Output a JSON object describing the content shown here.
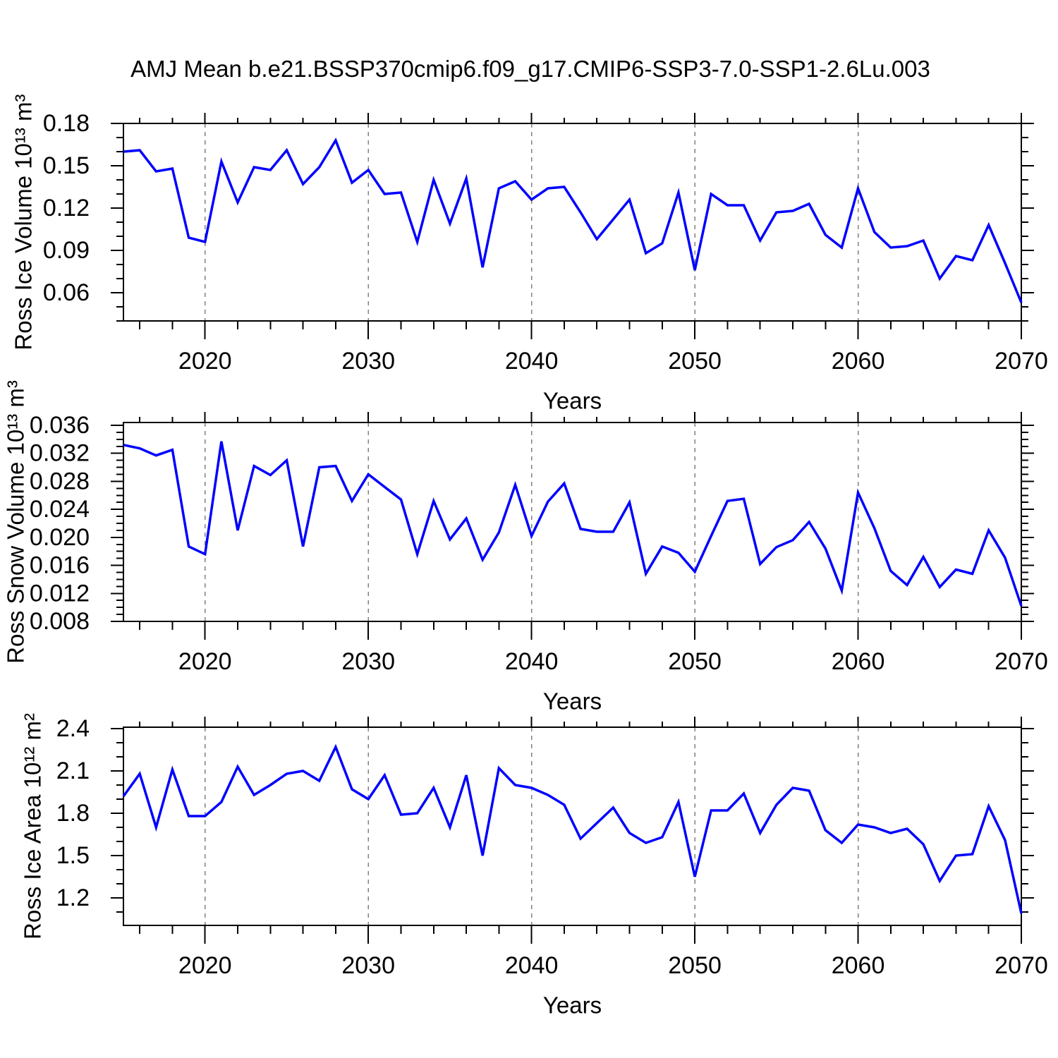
{
  "title": "AMJ Mean b.e21.BSSP370cmip6.f09_g17.CMIP6-SSP3-7.0-SSP1-2.6Lu.003",
  "colors": {
    "line": "#0000ff",
    "axis": "#000000",
    "gridline": "#808080",
    "text": "#000000",
    "background": "#ffffff"
  },
  "chart_data": [
    {
      "type": "line",
      "panel": "top",
      "ylabel": "Ross Ice Volume 10¹³ m³",
      "xlabel": "Years",
      "x_start": 2015,
      "x_step": 1,
      "values": [
        0.16,
        0.161,
        0.146,
        0.148,
        0.099,
        0.096,
        0.153,
        0.124,
        0.149,
        0.147,
        0.161,
        0.137,
        0.149,
        0.168,
        0.138,
        0.147,
        0.13,
        0.131,
        0.096,
        0.14,
        0.109,
        0.141,
        0.078,
        0.134,
        0.139,
        0.126,
        0.134,
        0.135,
        0.117,
        0.098,
        0.112,
        0.126,
        0.088,
        0.095,
        0.131,
        0.076,
        0.13,
        0.122,
        0.122,
        0.097,
        0.117,
        0.118,
        0.123,
        0.101,
        0.092,
        0.134,
        0.103,
        0.092,
        0.093,
        0.097,
        0.07,
        0.086,
        0.083,
        0.108,
        0.081,
        0.053
      ],
      "xlim": [
        2015,
        2070
      ],
      "ylim": [
        0.04,
        0.18
      ],
      "yticks": [
        0.06,
        0.09,
        0.12,
        0.15,
        0.18
      ],
      "ytick_labels": [
        "0.06",
        "0.09",
        "0.12",
        "0.15",
        "0.18"
      ],
      "y_minor_step": 0.01,
      "xticks": [
        2020,
        2030,
        2040,
        2050,
        2060,
        2070
      ],
      "xtick_labels": [
        "2020",
        "2030",
        "2040",
        "2050",
        "2060",
        "2070"
      ],
      "x_minor_step": 2,
      "grid_years": [
        2020,
        2030,
        2040,
        2050,
        2060
      ],
      "grid": "vertical-dashed",
      "legend": null
    },
    {
      "type": "line",
      "panel": "middle",
      "ylabel": "Ross Snow Volume 10¹³ m³",
      "xlabel": "Years",
      "x_start": 2015,
      "x_step": 1,
      "values": [
        0.0332,
        0.0327,
        0.0317,
        0.0325,
        0.0187,
        0.0176,
        0.0337,
        0.021,
        0.0302,
        0.0289,
        0.031,
        0.0187,
        0.03,
        0.0302,
        0.0252,
        0.029,
        0.0272,
        0.0254,
        0.0176,
        0.0252,
        0.0197,
        0.0227,
        0.0168,
        0.0207,
        0.0275,
        0.0202,
        0.0251,
        0.0277,
        0.0212,
        0.0208,
        0.0208,
        0.025,
        0.0148,
        0.0187,
        0.0178,
        0.0151,
        0.0202,
        0.0252,
        0.0255,
        0.0162,
        0.0186,
        0.0196,
        0.0222,
        0.0184,
        0.0124,
        0.0264,
        0.0213,
        0.0152,
        0.0132,
        0.0172,
        0.0129,
        0.0154,
        0.0148,
        0.021,
        0.0171,
        0.0102
      ],
      "xlim": [
        2015,
        2070
      ],
      "ylim": [
        0.008,
        0.0364
      ],
      "yticks": [
        0.008,
        0.012,
        0.016,
        0.02,
        0.024,
        0.028,
        0.032,
        0.036
      ],
      "ytick_labels": [
        "0.008",
        "0.012",
        "0.016",
        "0.020",
        "0.024",
        "0.028",
        "0.032",
        "0.036"
      ],
      "y_minor_step": 0.001,
      "xticks": [
        2020,
        2030,
        2040,
        2050,
        2060,
        2070
      ],
      "xtick_labels": [
        "2020",
        "2030",
        "2040",
        "2050",
        "2060",
        "2070"
      ],
      "x_minor_step": 2,
      "grid_years": [
        2020,
        2030,
        2040,
        2050,
        2060
      ],
      "grid": "vertical-dashed",
      "legend": null
    },
    {
      "type": "line",
      "panel": "bottom",
      "ylabel": "Ross Ice Area 10¹² m²",
      "xlabel": "Years",
      "x_start": 2015,
      "x_step": 1,
      "values": [
        1.92,
        2.08,
        1.7,
        2.11,
        1.78,
        1.78,
        1.88,
        2.13,
        1.93,
        2.0,
        2.08,
        2.1,
        2.03,
        2.27,
        1.97,
        1.9,
        2.07,
        1.79,
        1.8,
        1.98,
        1.7,
        2.07,
        1.5,
        2.12,
        2.0,
        1.98,
        1.93,
        1.86,
        1.62,
        1.73,
        1.84,
        1.66,
        1.59,
        1.63,
        1.88,
        1.35,
        1.82,
        1.82,
        1.94,
        1.66,
        1.86,
        1.98,
        1.96,
        1.68,
        1.59,
        1.72,
        1.7,
        1.66,
        1.69,
        1.58,
        1.32,
        1.5,
        1.51,
        1.85,
        1.61,
        1.09
      ],
      "xlim": [
        2015,
        2070
      ],
      "ylim": [
        1.005,
        2.41
      ],
      "yticks": [
        1.2,
        1.5,
        1.8,
        2.1,
        2.4
      ],
      "ytick_labels": [
        "1.2",
        "1.5",
        "1.8",
        "2.1",
        "2.4"
      ],
      "y_minor_step": 0.1,
      "xticks": [
        2020,
        2030,
        2040,
        2050,
        2060,
        2070
      ],
      "xtick_labels": [
        "2020",
        "2030",
        "2040",
        "2050",
        "2060",
        "2070"
      ],
      "x_minor_step": 2,
      "grid_years": [
        2020,
        2030,
        2040,
        2050,
        2060
      ],
      "grid": "vertical-dashed",
      "legend": null
    }
  ]
}
